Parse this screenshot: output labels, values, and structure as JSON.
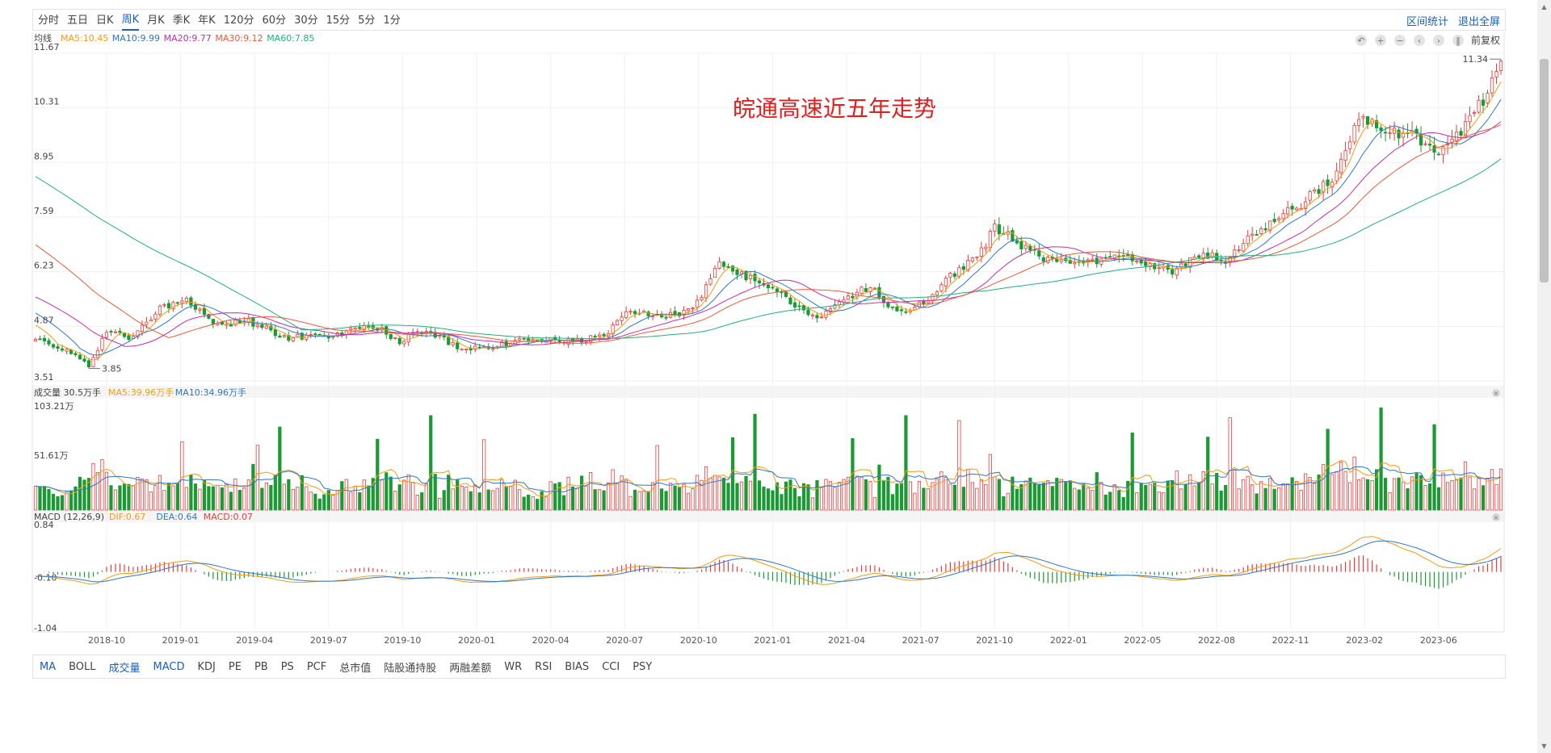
{
  "toolbar": {
    "periods": [
      "分时",
      "五日",
      "日K",
      "周K",
      "月K",
      "季K",
      "年K",
      "120分",
      "60分",
      "30分",
      "15分",
      "5分",
      "1分"
    ],
    "active_period": "周K",
    "right_links": [
      "区间统计",
      "退出全屏"
    ]
  },
  "legend": {
    "ma_title": "均线",
    "ma_items": [
      {
        "text": "MA5:10.45",
        "color": "#f39c12"
      },
      {
        "text": "MA10:9.99",
        "color": "#2f78c4"
      },
      {
        "text": "MA20:9.77",
        "color": "#c82ea8"
      },
      {
        "text": "MA30:9.12",
        "color": "#ee5a3c"
      },
      {
        "text": "MA60:7.85",
        "color": "#20b080"
      }
    ],
    "adjust_label": "前复权",
    "vol_title": "成交量 30.5万手",
    "vol_items": [
      {
        "text": "MA5:39.96万手",
        "color": "#f39c12"
      },
      {
        "text": "MA10:34.96万手",
        "color": "#2f78c4"
      }
    ],
    "macd_title": "MACD (12,26,9)",
    "macd_items": [
      {
        "text": "DIF:0.67",
        "color": "#f39c12"
      },
      {
        "text": "DEA:0.64",
        "color": "#2f78c4"
      },
      {
        "text": "MACD:0.07",
        "color": "#ee3b3b"
      }
    ]
  },
  "annotation_title": "皖通高速近五年走势",
  "colors": {
    "up": "#ee3b3b",
    "down": "#1a9a33",
    "accent": "#1a5fb4"
  },
  "chart_data": {
    "type": "candlestick",
    "title": "皖通高速近五年走势",
    "x_ticks": [
      "2018-10",
      "2019-01",
      "2019-04",
      "2019-07",
      "2019-10",
      "2020-01",
      "2020-04",
      "2020-07",
      "2020-10",
      "2021-01",
      "2021-04",
      "2021-07",
      "2021-10",
      "2022-01",
      "2022-05",
      "2022-08",
      "2022-11",
      "2023-02",
      "2023-06"
    ],
    "price": {
      "ylim": [
        3.51,
        11.67
      ],
      "y_ticks": [
        "11.67",
        "10.31",
        "8.95",
        "7.59",
        "6.23",
        "4.87",
        "3.51"
      ],
      "min_label": "3.85",
      "max_label": "11.34",
      "close_keypoints": [
        [
          0,
          4.6
        ],
        [
          6,
          4.3
        ],
        [
          12,
          3.9
        ],
        [
          16,
          4.7
        ],
        [
          22,
          4.6
        ],
        [
          28,
          5.3
        ],
        [
          34,
          5.6
        ],
        [
          40,
          4.9
        ],
        [
          48,
          5.0
        ],
        [
          56,
          4.6
        ],
        [
          66,
          4.6
        ],
        [
          76,
          4.9
        ],
        [
          82,
          4.5
        ],
        [
          88,
          4.8
        ],
        [
          96,
          4.3
        ],
        [
          104,
          4.4
        ],
        [
          112,
          4.6
        ],
        [
          120,
          4.5
        ],
        [
          128,
          4.6
        ],
        [
          134,
          5.3
        ],
        [
          142,
          5.1
        ],
        [
          148,
          5.3
        ],
        [
          154,
          6.4
        ],
        [
          162,
          6.0
        ],
        [
          170,
          5.5
        ],
        [
          176,
          5.1
        ],
        [
          182,
          5.5
        ],
        [
          188,
          5.9
        ],
        [
          194,
          5.2
        ],
        [
          200,
          5.5
        ],
        [
          206,
          6.1
        ],
        [
          212,
          6.6
        ],
        [
          216,
          7.3
        ],
        [
          222,
          6.9
        ],
        [
          228,
          6.5
        ],
        [
          236,
          6.4
        ],
        [
          244,
          6.6
        ],
        [
          250,
          6.4
        ],
        [
          256,
          6.2
        ],
        [
          262,
          6.7
        ],
        [
          268,
          6.5
        ],
        [
          274,
          7.1
        ],
        [
          280,
          7.6
        ],
        [
          286,
          8.0
        ],
        [
          292,
          8.5
        ],
        [
          298,
          10.0
        ],
        [
          304,
          9.8
        ],
        [
          310,
          9.6
        ],
        [
          316,
          9.2
        ],
        [
          322,
          9.8
        ],
        [
          326,
          10.5
        ],
        [
          330,
          11.3
        ]
      ]
    },
    "volume": {
      "unit": "万手",
      "y_ticks": [
        "103.21万",
        "51.61万"
      ],
      "ymax": 103.21
    },
    "macd": {
      "y_ticks": [
        "0.84",
        "-0.10",
        "-1.04"
      ],
      "ylim": [
        -1.04,
        0.84
      ]
    }
  },
  "bottom_tabs": [
    "MA",
    "BOLL",
    "成交量",
    "MACD",
    "KDJ",
    "PE",
    "PB",
    "PS",
    "PCF",
    "总市值",
    "陆股通持股",
    "两融差额",
    "WR",
    "RSI",
    "BIAS",
    "CCI",
    "PSY"
  ],
  "bottom_active": [
    "MA",
    "成交量",
    "MACD"
  ]
}
